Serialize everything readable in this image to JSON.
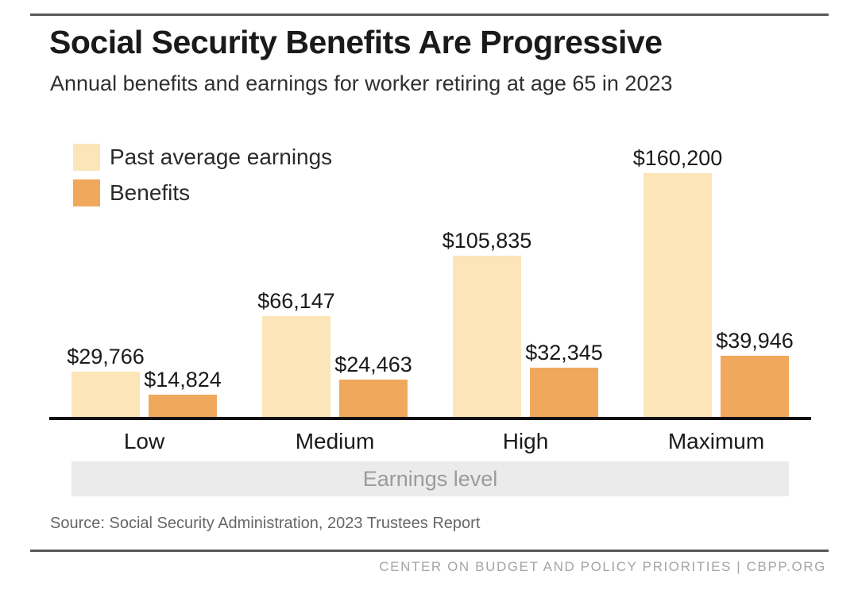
{
  "header": {
    "title": "Social Security Benefits Are Progressive",
    "subtitle": "Annual benefits and earnings for worker retiring at age 65 in 2023"
  },
  "colors": {
    "earnings": "#fce5b8",
    "benefits": "#f0a85c",
    "axis": "#111111",
    "band_bg": "#ebebeb",
    "band_text": "#9b9b9b"
  },
  "legend": {
    "items": [
      {
        "label": "Past average earnings",
        "color": "#fce5b8"
      },
      {
        "label": "Benefits",
        "color": "#f0a85c"
      }
    ]
  },
  "chart_data": {
    "type": "bar",
    "title": "Social Security Benefits Are Progressive",
    "subtitle": "Annual benefits and earnings for worker retiring at age 65 in 2023",
    "categories": [
      "Low",
      "Medium",
      "High",
      "Maximum"
    ],
    "series": [
      {
        "name": "Past average earnings",
        "key": "earnings",
        "color": "#fce5b8",
        "values": [
          29766,
          66147,
          105835,
          160200
        ],
        "labels": [
          "$29,766",
          "$66,147",
          "$105,835",
          "$160,200"
        ]
      },
      {
        "name": "Benefits",
        "key": "benefits",
        "color": "#f0a85c",
        "values": [
          14824,
          24463,
          32345,
          39946
        ],
        "labels": [
          "$14,824",
          "$24,463",
          "$32,345",
          "$39,946"
        ]
      }
    ],
    "xlabel": "Earnings level",
    "ylabel": "",
    "ylim": [
      0,
      160200
    ],
    "grid": false,
    "legend_position": "top-left",
    "value_labels": true
  },
  "source": "Source: Social Security Administration, 2023 Trustees Report",
  "footer": "CENTER ON BUDGET AND POLICY PRIORITIES | CBPP.ORG"
}
